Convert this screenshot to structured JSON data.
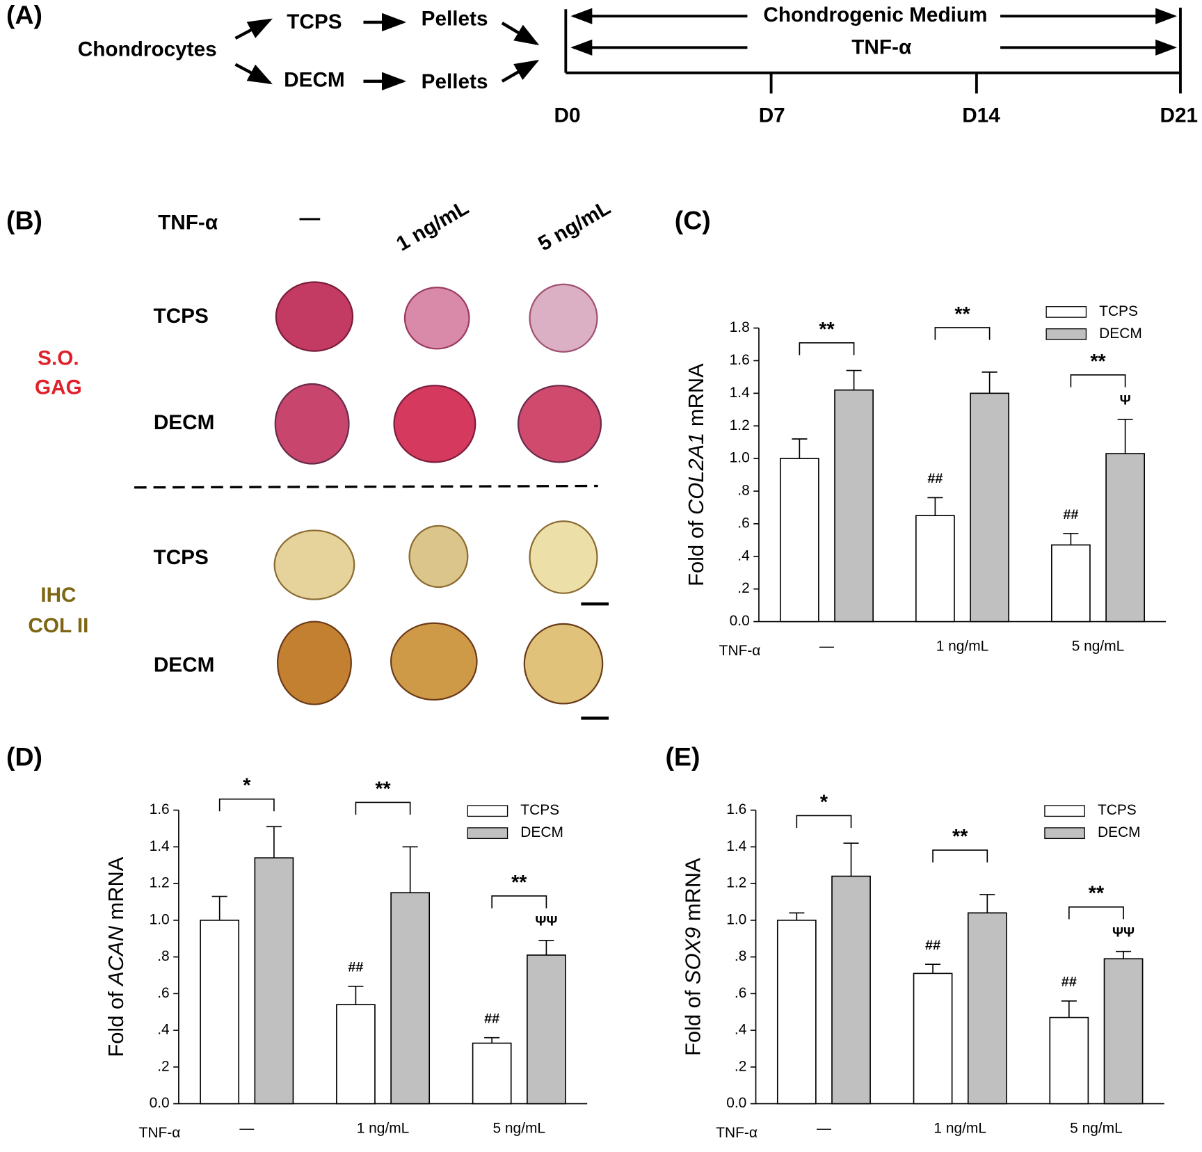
{
  "panel_a": {
    "label": "(A)",
    "source": "Chondrocytes",
    "substrates": [
      "TCPS",
      "DECM"
    ],
    "products": [
      "Pellets",
      "Pellets"
    ],
    "timeline": {
      "bars": [
        "Chondrogenic Medium",
        "TNF-α"
      ],
      "days": [
        "D0",
        "D7",
        "D14",
        "D21"
      ]
    }
  },
  "panel_b": {
    "label": "(B)",
    "treatment": "TNF-α",
    "doses": [
      "—",
      "1 ng/mL",
      "5 ng/mL"
    ],
    "stains": [
      {
        "lines": [
          "S.O.",
          "GAG"
        ],
        "rows": [
          "TCPS",
          "DECM"
        ]
      },
      {
        "lines": [
          "IHC",
          "COL II"
        ],
        "rows": [
          "TCPS",
          "DECM"
        ]
      }
    ]
  },
  "chart_data": [
    {
      "type": "bar",
      "panel": "(C)",
      "categories": [
        "—",
        "1 ng/mL",
        "5 ng/mL"
      ],
      "xlabel": "TNF-α",
      "ylabel": {
        "prefix": "Fold of ",
        "gene": "COL2A1",
        "suffix": " mRNA"
      },
      "ylim": [
        0,
        1.8
      ],
      "yticks": [
        {
          "value": 0,
          "label": "0.0"
        },
        {
          "value": 0.2,
          "label": ".2"
        },
        {
          "value": 0.4,
          "label": ".4"
        },
        {
          "value": 0.6,
          "label": ".6"
        },
        {
          "value": 0.8,
          "label": ".8"
        },
        {
          "value": 1,
          "label": "1.0"
        },
        1.2,
        1.4,
        1.6,
        1.8
      ],
      "legend": "upper right",
      "significance": [
        "**",
        "**",
        "**"
      ],
      "series": [
        {
          "name": "TCPS",
          "color": "#ffffff",
          "values": [
            1.0,
            0.65,
            0.47
          ],
          "errors": [
            0.12,
            0.11,
            0.07
          ],
          "symbols": [
            null,
            "##",
            "##"
          ]
        },
        {
          "name": "DECM",
          "color": "#c0c0c0",
          "values": [
            1.42,
            1.4,
            1.03
          ],
          "errors": [
            0.12,
            0.13,
            0.21
          ],
          "symbols": [
            null,
            null,
            "Ψ"
          ]
        }
      ]
    },
    {
      "type": "bar",
      "panel": "(D)",
      "categories": [
        "—",
        "1 ng/mL",
        "5 ng/mL"
      ],
      "xlabel": "TNF-α",
      "ylabel": {
        "prefix": "Fold of ",
        "gene": "ACAN",
        "suffix": " mRNA"
      },
      "ylim": [
        0,
        1.6
      ],
      "yticks": [
        {
          "value": 0,
          "label": "0.0"
        },
        {
          "value": 0.2,
          "label": ".2"
        },
        {
          "value": 0.4,
          "label": ".4"
        },
        {
          "value": 0.6,
          "label": ".6"
        },
        {
          "value": 0.8,
          "label": ".8"
        },
        {
          "value": 1,
          "label": "1.0"
        },
        1.2,
        1.4,
        1.6
      ],
      "legend": "upper right",
      "significance": [
        "*",
        "**",
        "**"
      ],
      "series": [
        {
          "name": "TCPS",
          "color": "#ffffff",
          "values": [
            1.0,
            0.54,
            0.33
          ],
          "errors": [
            0.13,
            0.1,
            0.03
          ],
          "symbols": [
            null,
            "##",
            "##"
          ]
        },
        {
          "name": "DECM",
          "color": "#c0c0c0",
          "values": [
            1.34,
            1.15,
            0.81
          ],
          "errors": [
            0.17,
            0.25,
            0.08
          ],
          "symbols": [
            null,
            null,
            "ΨΨ"
          ]
        }
      ]
    },
    {
      "type": "bar",
      "panel": "(E)",
      "categories": [
        "—",
        "1 ng/mL",
        "5 ng/mL"
      ],
      "xlabel": "TNF-α",
      "ylabel": {
        "prefix": "Fold of ",
        "gene": "SOX9",
        "suffix": " mRNA"
      },
      "ylim": [
        0,
        1.6
      ],
      "yticks": [
        {
          "value": 0,
          "label": "0.0"
        },
        {
          "value": 0.2,
          "label": ".2"
        },
        {
          "value": 0.4,
          "label": ".4"
        },
        {
          "value": 0.6,
          "label": ".6"
        },
        {
          "value": 0.8,
          "label": ".8"
        },
        {
          "value": 1,
          "label": "1.0"
        },
        1.2,
        1.4,
        1.6
      ],
      "legend": "upper right",
      "significance": [
        "*",
        "**",
        "**"
      ],
      "series": [
        {
          "name": "TCPS",
          "color": "#ffffff",
          "values": [
            1.0,
            0.71,
            0.47
          ],
          "errors": [
            0.04,
            0.05,
            0.09
          ],
          "symbols": [
            null,
            "##",
            "##"
          ]
        },
        {
          "name": "DECM",
          "color": "#c0c0c0",
          "values": [
            1.24,
            1.04,
            0.79
          ],
          "errors": [
            0.18,
            0.1,
            0.04
          ],
          "symbols": [
            null,
            null,
            "ΨΨ"
          ]
        }
      ]
    }
  ]
}
